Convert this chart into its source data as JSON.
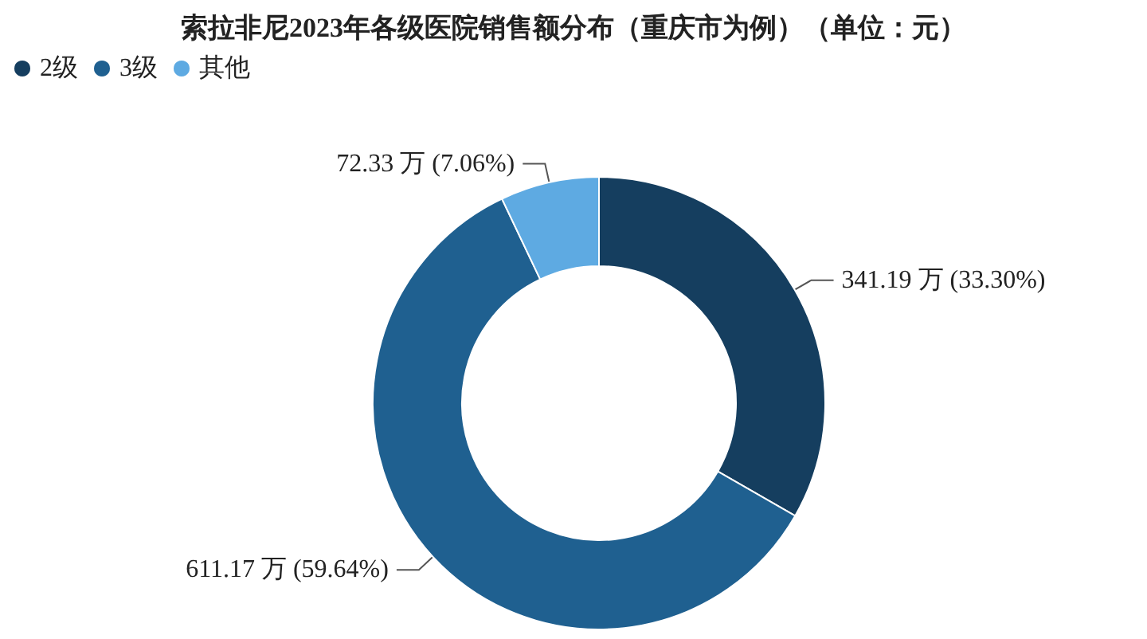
{
  "chart_data": {
    "type": "donut",
    "title": "索拉非尼2023年各级医院销售额分布（重庆市为例）（单位：元）",
    "categories": [
      "2级",
      "3级",
      "其他"
    ],
    "values": [
      341.19,
      611.17,
      72.33
    ],
    "colors": [
      "#153e5f",
      "#1f6090",
      "#5eaae2"
    ],
    "value_labels": [
      "341.19 万 (33.30%)",
      "611.17 万 (59.64%)",
      "72.33 万 (7.06%)"
    ],
    "legend": "top left"
  }
}
